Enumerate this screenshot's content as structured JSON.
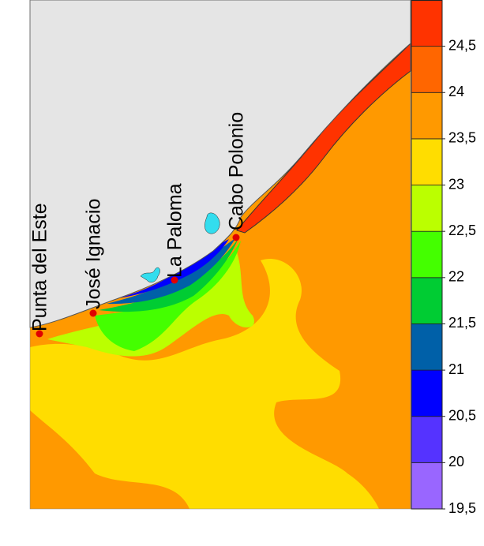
{
  "places": [
    "Punta del Este",
    "José Ignacio",
    "La Paloma",
    "Cabo Polonio"
  ],
  "colorbar": {
    "lim": [
      19.5,
      25
    ],
    "levels": [
      19.5,
      20,
      20.5,
      21,
      21.5,
      22,
      22.5,
      23,
      23.5,
      24,
      24.5,
      25
    ],
    "colors": [
      "#9966ff",
      "#5533ff",
      "#0000ff",
      "#0060a8",
      "#00cc33",
      "#44ff00",
      "#bbff00",
      "#ffdd00",
      "#ff9900",
      "#ff6600",
      "#ff3300"
    ],
    "ticks": [
      {
        "value": 19.5,
        "label": "19,5"
      },
      20,
      {
        "value": 20.5,
        "label": "20,5"
      },
      21,
      {
        "value": 21.5,
        "label": "21,5"
      },
      22,
      {
        "value": 22.5,
        "label": "22,5"
      },
      23,
      {
        "value": 23.5,
        "label": "23,5"
      },
      24,
      {
        "value": 24.5,
        "label": "24,5"
      }
    ]
  }
}
